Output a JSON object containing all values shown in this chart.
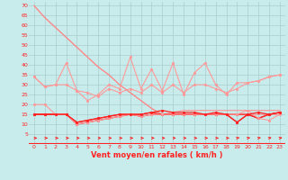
{
  "x": [
    0,
    1,
    2,
    3,
    4,
    5,
    6,
    7,
    8,
    9,
    10,
    11,
    12,
    13,
    14,
    15,
    16,
    17,
    18,
    19,
    20,
    21,
    22,
    23
  ],
  "diag1": [
    70,
    64,
    59,
    54,
    49,
    44,
    39,
    35,
    30,
    26,
    22,
    18,
    15,
    15,
    15,
    15,
    15,
    15,
    15,
    15,
    15,
    15,
    15,
    15
  ],
  "diag2": [
    70,
    64,
    59,
    54,
    49,
    44,
    39,
    35,
    30,
    26,
    22,
    18,
    15,
    16,
    17,
    17,
    17,
    17,
    17,
    17,
    17,
    17,
    17,
    17
  ],
  "light1": [
    34,
    29,
    30,
    41,
    27,
    22,
    25,
    30,
    28,
    44,
    28,
    38,
    27,
    41,
    25,
    36,
    41,
    30,
    25,
    31,
    31,
    32,
    34,
    35
  ],
  "light2": [
    34,
    29,
    30,
    30,
    27,
    26,
    24,
    28,
    26,
    28,
    26,
    30,
    26,
    30,
    26,
    30,
    30,
    28,
    26,
    28,
    31,
    32,
    34,
    35
  ],
  "red1": [
    15,
    15,
    15,
    15,
    10,
    11,
    12,
    13,
    14,
    15,
    14,
    15,
    15,
    15,
    15,
    15,
    15,
    15,
    15,
    15,
    15,
    13,
    15,
    16
  ],
  "red2": [
    15,
    15,
    15,
    15,
    11,
    12,
    13,
    14,
    15,
    15,
    15,
    16,
    15,
    15,
    15,
    15,
    15,
    15,
    15,
    11,
    15,
    13,
    15,
    16
  ],
  "red3": [
    20,
    20,
    15,
    15,
    10,
    11,
    12,
    13,
    14,
    15,
    14,
    15,
    15,
    15,
    15,
    15,
    15,
    15,
    15,
    15,
    17,
    13,
    12,
    15
  ],
  "red4": [
    15,
    15,
    15,
    15,
    11,
    12,
    13,
    14,
    15,
    15,
    15,
    16,
    17,
    16,
    16,
    16,
    15,
    16,
    15,
    11,
    15,
    16,
    15,
    16
  ],
  "arrows_straight": [
    0,
    1,
    2,
    3,
    4,
    5,
    6,
    7,
    8,
    9,
    10,
    11,
    12,
    13,
    14,
    15,
    16,
    17,
    18
  ],
  "arrows_angled": [
    19,
    20,
    21,
    22,
    23
  ],
  "color_light": "#FF9999",
  "color_dark": "#FF2222",
  "color_diag": "#FF8888",
  "bg_color": "#C8ECEC",
  "grid_color": "#AACCCC",
  "xlabel": "Vent moyen/en rafales ( km/h )",
  "ylim": [
    0,
    72
  ],
  "yticks": [
    5,
    10,
    15,
    20,
    25,
    30,
    35,
    40,
    45,
    50,
    55,
    60,
    65,
    70
  ],
  "xlim": [
    -0.5,
    23.5
  ]
}
